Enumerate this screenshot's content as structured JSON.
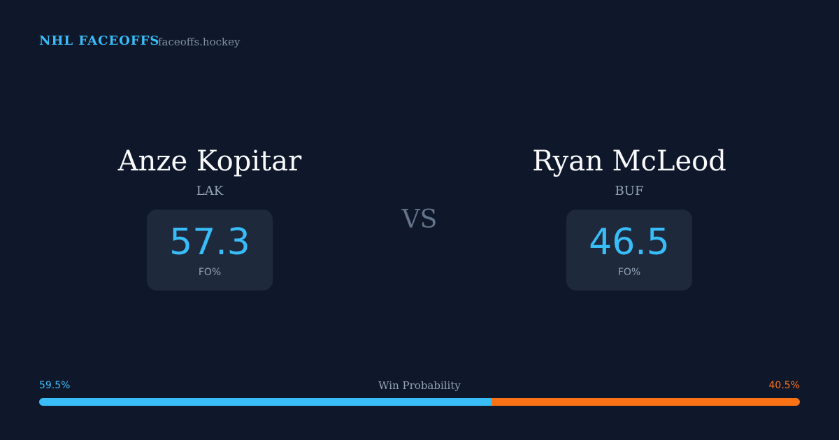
{
  "header": {
    "title": "NHL FACEOFFS",
    "site": "faceoffs.hockey"
  },
  "players": [
    {
      "name": "Anze Kopitar",
      "team": "LAK",
      "stat": "57.3",
      "stat_label": "FO%",
      "color": "#38bdf8"
    },
    {
      "name": "Ryan McLeod",
      "team": "BUF",
      "stat": "46.5",
      "stat_label": "FO%",
      "color": "#38bdf8"
    }
  ],
  "versus": "VS",
  "win_probability": {
    "title": "Win Probability",
    "home": {
      "value": 59.5,
      "label": "59.5%",
      "color": "#38bdf8"
    },
    "away": {
      "value": 40.5,
      "label": "40.5%",
      "color": "#f97316"
    }
  }
}
